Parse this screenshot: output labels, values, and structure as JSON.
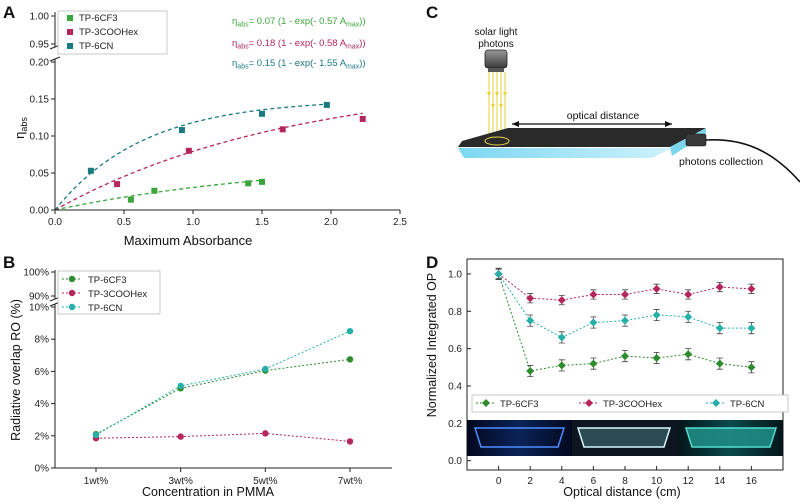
{
  "panels": {
    "a": "A",
    "b": "B",
    "c": "C",
    "d": "D"
  },
  "colors": {
    "cf3": "#3aa63a",
    "cooh": "#b5265c",
    "cn": "#1a7a80",
    "cf3_d": "#2e8b2e",
    "cn_d": "#26b0a8"
  },
  "chart_data": [
    {
      "id": "A",
      "type": "scatter",
      "title": "",
      "xlabel": "Maximum Absorbance",
      "ylabel": "η_abs",
      "ylabel_main": "η",
      "ylabel_sub": "abs",
      "xlim": [
        0,
        2.5
      ],
      "ylim_lower": [
        0,
        0.2
      ],
      "ylim_upper": [
        0.95,
        1.0
      ],
      "xticks": [
        "0.0",
        "0.5",
        "1.0",
        "1.5",
        "2.0",
        "2.5"
      ],
      "yticks_lower": [
        "0.00",
        "0.05",
        "0.10",
        "0.15",
        "0.20"
      ],
      "yticks_upper": [
        "0.95",
        "1.00"
      ],
      "legend": [
        "TP-6CF3",
        "TP-3COOHex",
        "TP-6CN"
      ],
      "series": [
        {
          "name": "TP-6CF3",
          "x": [
            0.55,
            0.72,
            1.4,
            1.5
          ],
          "y": [
            0.014,
            0.026,
            0.036,
            0.038
          ],
          "fit": {
            "a": 0.07,
            "k": 0.57,
            "xmax": 1.5
          }
        },
        {
          "name": "TP-3COOHex",
          "x": [
            0.45,
            0.97,
            1.65,
            2.23
          ],
          "y": [
            0.035,
            0.08,
            0.109,
            0.123
          ],
          "fit": {
            "a": 0.18,
            "k": 0.58,
            "xmax": 2.23
          }
        },
        {
          "name": "TP-6CN",
          "x": [
            0.26,
            0.92,
            1.5,
            1.97
          ],
          "y": [
            0.053,
            0.108,
            0.13,
            0.142
          ],
          "fit": {
            "a": 0.15,
            "k": 1.55,
            "xmax": 1.97
          }
        }
      ],
      "equations": [
        {
          "p1": "η",
          "sub1": "abs",
          "p2": "= 0.07 (1 - exp(- 0.57 A",
          "sub2": "max",
          "p3": "))"
        },
        {
          "p1": "η",
          "sub1": "abs",
          "p2": "= 0.18 (1 - exp(- 0.58 A",
          "sub2": "max",
          "p3": "))"
        },
        {
          "p1": "η",
          "sub1": "abs",
          "p2": "= 0.15 (1 - exp(- 1.55 A",
          "sub2": "max",
          "p3": "))"
        }
      ]
    },
    {
      "id": "B",
      "type": "line",
      "xlabel": "Concentration in PMMA",
      "ylabel": "Radiative overlap RO (%)",
      "categories": [
        "1wt%",
        "3wt%",
        "5wt%",
        "7wt%"
      ],
      "yticks_lower": [
        "0%",
        "2%",
        "4%",
        "6%",
        "8%",
        "10%"
      ],
      "yticks_upper": [
        "90%",
        "100%"
      ],
      "ylim_lower": [
        0,
        10
      ],
      "ylim_upper": [
        90,
        100
      ],
      "legend": [
        "TP-6CF3",
        "TP-3COOHex",
        "TP-6CN"
      ],
      "series": [
        {
          "name": "TP-6CF3",
          "values": [
            2.1,
            4.95,
            6.05,
            6.75
          ]
        },
        {
          "name": "TP-3COOHex",
          "values": [
            1.85,
            1.95,
            2.15,
            1.65
          ]
        },
        {
          "name": "TP-6CN",
          "values": [
            2.05,
            5.1,
            6.15,
            8.5
          ]
        }
      ]
    },
    {
      "id": "D",
      "type": "line",
      "xlabel": "Optical distance (cm)",
      "ylabel": "Normalized Integrated OP",
      "x": [
        0,
        2,
        4,
        6,
        8,
        10,
        12,
        14,
        16
      ],
      "xticks": [
        "0",
        "2",
        "4",
        "6",
        "8",
        "10",
        "12",
        "14",
        "16"
      ],
      "yticks": [
        "0.0",
        "0.2",
        "0.4",
        "0.6",
        "0.8",
        "1.0"
      ],
      "xlim": [
        -2,
        18
      ],
      "ylim": [
        -0.05,
        1.08
      ],
      "legend": [
        "TP-6CF3",
        "TP-3COOHex",
        "TP-6CN"
      ],
      "series": [
        {
          "name": "TP-6CF3",
          "values": [
            1.0,
            0.48,
            0.51,
            0.52,
            0.56,
            0.55,
            0.57,
            0.52,
            0.5
          ],
          "err": 0.03
        },
        {
          "name": "TP-3COOHex",
          "values": [
            1.0,
            0.87,
            0.86,
            0.89,
            0.89,
            0.92,
            0.89,
            0.93,
            0.92
          ],
          "err": 0.025
        },
        {
          "name": "TP-6CN",
          "values": [
            1.0,
            0.75,
            0.66,
            0.74,
            0.75,
            0.78,
            0.77,
            0.71,
            0.71
          ],
          "err": 0.03
        }
      ]
    }
  ],
  "diagram_c": {
    "light_label_1": "solar light",
    "light_label_2": "photons",
    "distance_label": "optical distance",
    "collection_label": "photons collection"
  }
}
